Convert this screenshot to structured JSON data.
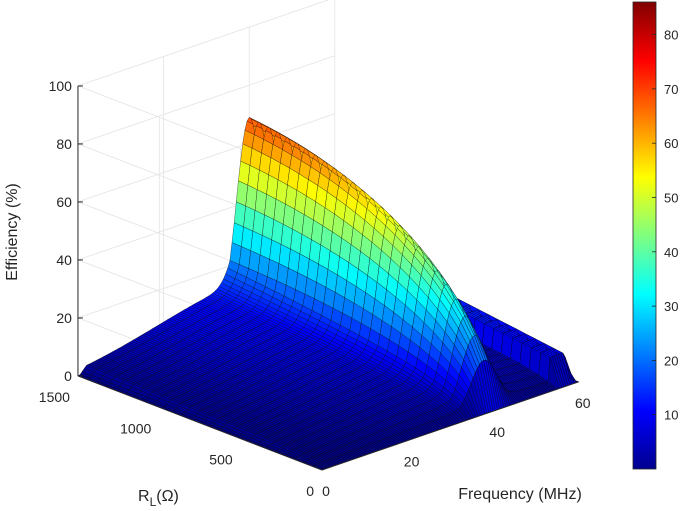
{
  "chart_data": {
    "type": "surface",
    "title": "",
    "xlabel": "Frequency (MHz)",
    "ylabel_main": "R",
    "ylabel_sub": "L",
    "ylabel_unit": "(Ω)",
    "zlabel": "Efficiency (%)",
    "xlim": [
      0,
      60
    ],
    "ylim": [
      0,
      1500
    ],
    "zlim": [
      0,
      100
    ],
    "x_ticks": [
      "0",
      "20",
      "40",
      "60"
    ],
    "y_ticks": [
      "0",
      "500",
      "1000",
      "1500"
    ],
    "z_ticks": [
      "0",
      "20",
      "40",
      "60",
      "80",
      "100"
    ],
    "colorbar": {
      "colormap": "jet",
      "range": [
        0,
        86
      ],
      "ticks": [
        "10",
        "20",
        "30",
        "40",
        "50",
        "60",
        "70",
        "80"
      ]
    },
    "grid": true,
    "surface_model": {
      "description_points": [
        {
          "frequency_mhz": 40,
          "rl_ohm": 1000,
          "efficiency_pct": 86
        },
        {
          "frequency_mhz": 40,
          "rl_ohm": 1500,
          "efficiency_pct": 76
        },
        {
          "frequency_mhz": 40,
          "rl_ohm": 0,
          "efficiency_pct": 0
        },
        {
          "frequency_mhz": 60,
          "rl_ohm": 1500,
          "efficiency_pct": 20
        },
        {
          "frequency_mhz": 60,
          "rl_ohm": 500,
          "efficiency_pct": 9
        },
        {
          "frequency_mhz": 0,
          "rl_ohm": 1500,
          "efficiency_pct": 0
        },
        {
          "frequency_mhz": 5,
          "rl_ohm": 1500,
          "efficiency_pct": 22
        }
      ]
    }
  }
}
